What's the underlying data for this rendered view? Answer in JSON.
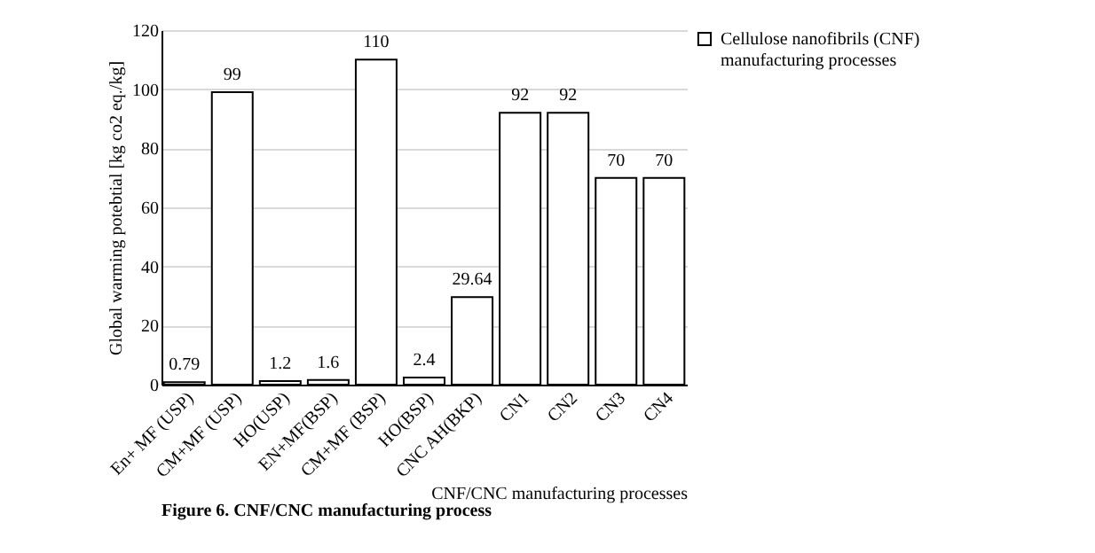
{
  "chart_data": {
    "type": "bar",
    "xlabel": "CNF/CNC manufacturing processes",
    "ylabel": "Global warming potebtial [kg co2 eq./kg]",
    "categories": [
      "En+ MF (USP)",
      "CM+MF (USP)",
      "HO(USP)",
      "EN+MF(BSP)",
      "CM+MF (BSP)",
      "HO(BSP)",
      "CNC AH(BKP)",
      "CN1",
      "CN2",
      "CN3",
      "CN4"
    ],
    "series": [
      {
        "name": "Cellulose nanofibrils (CNF) manufacturing processes",
        "color": "#ffffff",
        "values": [
          0.79,
          99,
          1.2,
          1.6,
          110,
          2.4,
          29.64,
          92,
          92,
          70,
          70
        ]
      }
    ],
    "ylim": [
      0,
      120
    ],
    "yticks": [
      0,
      20,
      40,
      60,
      80,
      100,
      120
    ],
    "grid": "y",
    "legend": "top right",
    "data_labels": true,
    "annotations": [
      "Figure 6. CNF/CNC manufacturing process"
    ]
  }
}
